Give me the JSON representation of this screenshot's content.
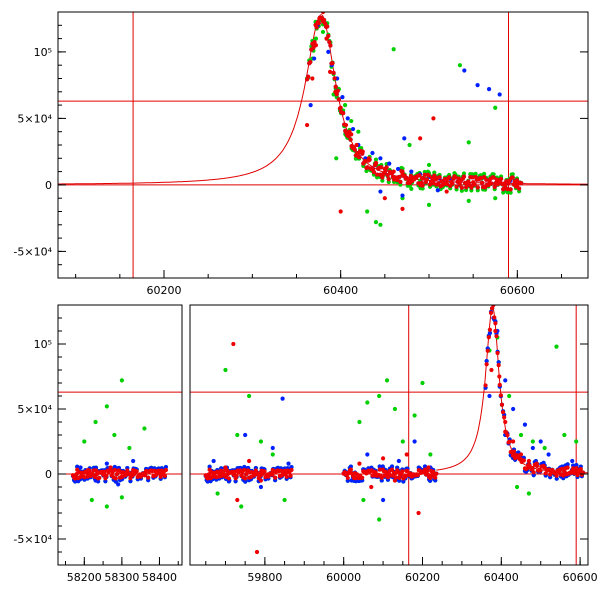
{
  "chart_data": [
    {
      "type": "scatter",
      "panel": "top",
      "xlim": [
        60080,
        60680
      ],
      "ylim": [
        -70000,
        130000
      ],
      "x_ticks": [
        {
          "value": 60200,
          "label": "60200"
        },
        {
          "value": 60400,
          "label": "60400"
        },
        {
          "value": 60600,
          "label": "60600"
        }
      ],
      "y_ticks": [
        {
          "value": -50000,
          "label": "-5×10⁴"
        },
        {
          "value": 0,
          "label": "0"
        },
        {
          "value": 50000,
          "label": "5×10⁴"
        },
        {
          "value": 100000,
          "label": "10⁵"
        }
      ],
      "reference_lines": {
        "vertical": [
          60165,
          60590
        ],
        "horizontal": [
          0,
          63000
        ]
      },
      "model_curve": {
        "color": "#e00000",
        "peak_x": 60378,
        "peak_y": 128000
      },
      "series": [
        {
          "color": "#00d000",
          "points": [
            [
              60368,
              95000
            ],
            [
              60372,
              110000
            ],
            [
              60380,
              115000
            ],
            [
              60392,
              68000
            ],
            [
              60398,
              72000
            ],
            [
              60405,
              60000
            ],
            [
              60412,
              48000
            ],
            [
              60420,
              40000
            ],
            [
              60428,
              18000
            ],
            [
              60440,
              15000
            ],
            [
              60452,
              12000
            ],
            [
              60460,
              102000
            ],
            [
              60470,
              8000
            ],
            [
              60478,
              30000
            ],
            [
              60490,
              3000
            ],
            [
              60500,
              15000
            ],
            [
              60520,
              5000
            ],
            [
              60535,
              90000
            ],
            [
              60545,
              32000
            ],
            [
              60560,
              5000
            ],
            [
              60575,
              58000
            ],
            [
              60590,
              3000
            ],
            [
              60430,
              -20000
            ],
            [
              60445,
              -30000
            ],
            [
              60470,
              -10000
            ],
            [
              60480,
              -3000
            ],
            [
              60500,
              -15000
            ],
            [
              60545,
              -12000
            ],
            [
              60575,
              -10000
            ],
            [
              60440,
              -28000
            ],
            [
              60410,
              35000
            ],
            [
              60395,
              20000
            ]
          ]
        },
        {
          "color": "#0020ff",
          "points": [
            [
              60366,
              60000
            ],
            [
              60370,
              95000
            ],
            [
              60374,
              120000
            ],
            [
              60380,
              124000
            ],
            [
              60386,
              100000
            ],
            [
              60390,
              90000
            ],
            [
              60396,
              80000
            ],
            [
              60402,
              66000
            ],
            [
              60408,
              50000
            ],
            [
              60414,
              42000
            ],
            [
              60420,
              30000
            ],
            [
              60428,
              20000
            ],
            [
              60436,
              24000
            ],
            [
              60445,
              20000
            ],
            [
              60455,
              16000
            ],
            [
              60465,
              12000
            ],
            [
              60472,
              35000
            ],
            [
              60480,
              10000
            ],
            [
              60490,
              8000
            ],
            [
              60500,
              6000
            ],
            [
              60512,
              5000
            ],
            [
              60525,
              4000
            ],
            [
              60540,
              86000
            ],
            [
              60555,
              75000
            ],
            [
              60568,
              72000
            ],
            [
              60580,
              68000
            ],
            [
              60592,
              3000
            ],
            [
              60600,
              1000
            ],
            [
              60445,
              -5000
            ],
            [
              60470,
              -8000
            ],
            [
              60510,
              -4000
            ]
          ]
        },
        {
          "color": "#ee0000",
          "points": [
            [
              60362,
              45000
            ],
            [
              60368,
              80000
            ],
            [
              60372,
              105000
            ],
            [
              60376,
              125000
            ],
            [
              60380,
              130000
            ],
            [
              60384,
              110000
            ],
            [
              60388,
              85000
            ],
            [
              60394,
              70000
            ],
            [
              60400,
              58000
            ],
            [
              60406,
              45000
            ],
            [
              60412,
              38000
            ],
            [
              60418,
              30000
            ],
            [
              60425,
              25000
            ],
            [
              60432,
              20000
            ],
            [
              60440,
              16000
            ],
            [
              60450,
              12000
            ],
            [
              60460,
              10000
            ],
            [
              60470,
              8000
            ],
            [
              60480,
              6000
            ],
            [
              60492,
              5000
            ],
            [
              60505,
              4000
            ],
            [
              60520,
              3000
            ],
            [
              60535,
              3000
            ],
            [
              60550,
              2000
            ],
            [
              60570,
              1000
            ],
            [
              60585,
              1000
            ],
            [
              60600,
              0
            ],
            [
              60450,
              -10000
            ],
            [
              60470,
              -18000
            ],
            [
              60490,
              35000
            ],
            [
              60505,
              50000
            ],
            [
              60520,
              -5000
            ],
            [
              60400,
              -20000
            ],
            [
              60410,
              40000
            ]
          ]
        }
      ]
    },
    {
      "type": "scatter",
      "panel": "bottom",
      "broken_axis": true,
      "ylim": [
        -70000,
        130000
      ],
      "segments": [
        {
          "xlim": [
            58130,
            58460
          ],
          "x_ticks": [
            {
              "value": 58200,
              "label": "58200"
            },
            {
              "value": 58300,
              "label": "58300"
            },
            {
              "value": 58400,
              "label": "58400"
            }
          ],
          "x_range": [
            58170,
            58420
          ]
        },
        {
          "xlim": [
            59610,
            60620
          ],
          "x_ticks": [
            {
              "value": 59800,
              "label": "59800"
            },
            {
              "value": 60000,
              "label": "60000"
            },
            {
              "value": 60200,
              "label": "60200"
            },
            {
              "value": 60400,
              "label": "60400"
            },
            {
              "value": 60600,
              "label": "60600"
            }
          ],
          "x_ranges": [
            [
              59650,
              59870
            ],
            [
              60000,
              60235
            ],
            [
              60360,
              60610
            ]
          ]
        }
      ],
      "y_ticks": [
        {
          "value": -50000,
          "label": "-5×10⁴"
        },
        {
          "value": 0,
          "label": "0"
        },
        {
          "value": 50000,
          "label": "5×10⁴"
        },
        {
          "value": 100000,
          "label": "10⁵"
        }
      ],
      "reference_lines": {
        "vertical": [
          60165,
          60590
        ],
        "horizontal": [
          0,
          63000
        ]
      },
      "model_curve": {
        "color": "#e00000",
        "peak_x": 60378,
        "peak_y": 128000
      },
      "series": [
        {
          "color": "#00d000",
          "points": [
            [
              58200,
              25000
            ],
            [
              58230,
              40000
            ],
            [
              58260,
              52000
            ],
            [
              58280,
              30000
            ],
            [
              58300,
              72000
            ],
            [
              58320,
              20000
            ],
            [
              58360,
              35000
            ],
            [
              58220,
              -20000
            ],
            [
              58260,
              -25000
            ],
            [
              58300,
              -18000
            ],
            [
              59700,
              80000
            ],
            [
              59730,
              30000
            ],
            [
              59760,
              60000
            ],
            [
              59790,
              25000
            ],
            [
              59820,
              15000
            ],
            [
              59850,
              -20000
            ],
            [
              59680,
              -15000
            ],
            [
              59740,
              -25000
            ],
            [
              60040,
              40000
            ],
            [
              60060,
              55000
            ],
            [
              60090,
              60000
            ],
            [
              60110,
              72000
            ],
            [
              60130,
              50000
            ],
            [
              60150,
              25000
            ],
            [
              60180,
              45000
            ],
            [
              60200,
              70000
            ],
            [
              60220,
              15000
            ],
            [
              60050,
              -20000
            ],
            [
              60090,
              -35000
            ],
            [
              60370,
              95000
            ],
            [
              60390,
              105000
            ],
            [
              60420,
              60000
            ],
            [
              60450,
              30000
            ],
            [
              60480,
              25000
            ],
            [
              60510,
              20000
            ],
            [
              60540,
              98000
            ],
            [
              60560,
              30000
            ],
            [
              60590,
              25000
            ],
            [
              60440,
              -10000
            ],
            [
              60470,
              -15000
            ]
          ]
        },
        {
          "color": "#0020ff",
          "points": [
            [
              58190,
              5000
            ],
            [
              58230,
              -5000
            ],
            [
              58260,
              8000
            ],
            [
              58290,
              -8000
            ],
            [
              58330,
              10000
            ],
            [
              58370,
              -3000
            ],
            [
              58400,
              3000
            ],
            [
              59670,
              10000
            ],
            [
              59710,
              -5000
            ],
            [
              59750,
              30000
            ],
            [
              59790,
              -10000
            ],
            [
              59820,
              20000
            ],
            [
              59845,
              58000
            ],
            [
              59860,
              8000
            ],
            [
              60020,
              -5000
            ],
            [
              60060,
              15000
            ],
            [
              60100,
              -20000
            ],
            [
              60140,
              10000
            ],
            [
              60180,
              25000
            ],
            [
              60220,
              5000
            ],
            [
              60370,
              60000
            ],
            [
              60380,
              120000
            ],
            [
              60390,
              110000
            ],
            [
              60410,
              72000
            ],
            [
              60430,
              50000
            ],
            [
              60460,
              38000
            ],
            [
              60480,
              20000
            ],
            [
              60500,
              25000
            ],
            [
              60520,
              15000
            ],
            [
              60550,
              5000
            ],
            [
              60580,
              10000
            ],
            [
              60600,
              2000
            ]
          ]
        },
        {
          "color": "#ee0000",
          "points": [
            [
              58180,
              0
            ],
            [
              58210,
              3000
            ],
            [
              58240,
              -3000
            ],
            [
              58270,
              5000
            ],
            [
              58300,
              -2000
            ],
            [
              58330,
              3000
            ],
            [
              58360,
              -1000
            ],
            [
              58390,
              2000
            ],
            [
              58410,
              0
            ],
            [
              59660,
              0
            ],
            [
              59700,
              5000
            ],
            [
              59730,
              -20000
            ],
            [
              59760,
              10000
            ],
            [
              59790,
              -5000
            ],
            [
              59820,
              3000
            ],
            [
              59850,
              0
            ],
            [
              59720,
              100000
            ],
            [
              59780,
              -60000
            ],
            [
              60010,
              0
            ],
            [
              60040,
              8000
            ],
            [
              60070,
              -10000
            ],
            [
              60100,
              12000
            ],
            [
              60130,
              -5000
            ],
            [
              60160,
              15000
            ],
            [
              60190,
              -30000
            ],
            [
              60215,
              5000
            ],
            [
              60375,
              80000
            ],
            [
              60380,
              130000
            ],
            [
              60385,
              110000
            ],
            [
              60395,
              75000
            ],
            [
              60410,
              40000
            ],
            [
              60430,
              25000
            ],
            [
              60450,
              15000
            ],
            [
              60470,
              10000
            ],
            [
              60490,
              8000
            ],
            [
              60510,
              5000
            ],
            [
              60530,
              3000
            ],
            [
              60560,
              2000
            ],
            [
              60590,
              1000
            ],
            [
              60605,
              0
            ]
          ]
        }
      ]
    }
  ]
}
